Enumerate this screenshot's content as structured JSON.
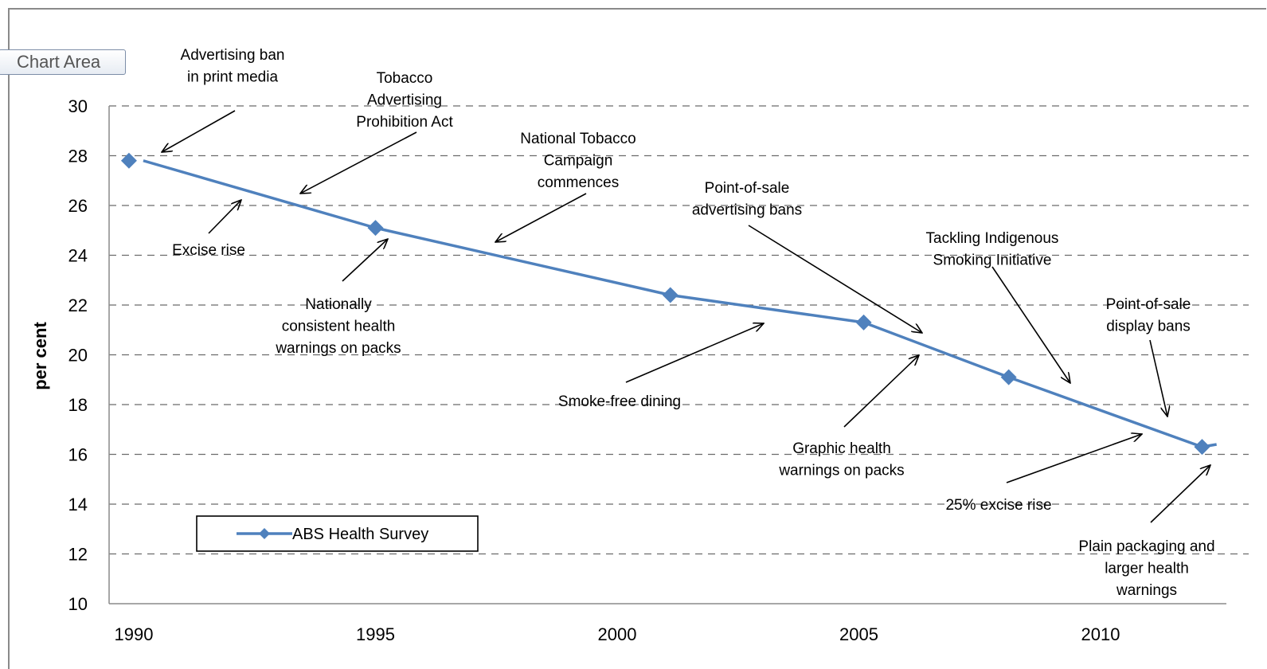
{
  "chart_area_label": "Chart Area",
  "chart_data": {
    "type": "line",
    "title": "",
    "xlabel": "",
    "ylabel": "per cent",
    "xlim": [
      1989.4,
      2012.5
    ],
    "ylim": [
      10,
      30
    ],
    "x_ticks": [
      1990,
      1995,
      2000,
      2005,
      2010
    ],
    "y_ticks": [
      10,
      12,
      14,
      16,
      18,
      20,
      22,
      24,
      26,
      28,
      30
    ],
    "grid": "horizontal dashed",
    "legend_position": "bottom-left",
    "series": [
      {
        "name": "ABS Health Survey",
        "color": "#4f81bd",
        "marker": "diamond",
        "points": [
          {
            "x": 1989.9,
            "y": 27.8
          },
          {
            "x": 1995.0,
            "y": 25.1
          },
          {
            "x": 2001.1,
            "y": 22.4
          },
          {
            "x": 2005.1,
            "y": 21.3
          },
          {
            "x": 2008.1,
            "y": 19.1
          },
          {
            "x": 2012.1,
            "y": 16.3
          }
        ],
        "line_end": {
          "x": 2012.4,
          "y": 16.4
        }
      }
    ],
    "annotations": [
      {
        "lines": [
          "Advertising ban",
          "in print media"
        ]
      },
      {
        "lines": [
          "Tobacco",
          "Advertising",
          "Prohibition Act"
        ]
      },
      {
        "lines": [
          "National Tobacco",
          "Campaign",
          "commences"
        ]
      },
      {
        "lines": [
          "Point-of-sale",
          "advertising bans"
        ]
      },
      {
        "lines": [
          "Tackling Indigenous",
          "Smoking Initiative"
        ]
      },
      {
        "lines": [
          "Point-of-sale",
          "display bans"
        ]
      },
      {
        "lines": [
          "Excise rise"
        ]
      },
      {
        "lines": [
          "Nationally",
          "consistent health",
          "warnings on packs"
        ]
      },
      {
        "lines": [
          "Smoke-free dining"
        ]
      },
      {
        "lines": [
          "Graphic health",
          "warnings on packs"
        ]
      },
      {
        "lines": [
          "25% excise rise"
        ]
      },
      {
        "lines": [
          "Plain packaging and",
          "larger health",
          "warnings"
        ]
      }
    ]
  }
}
